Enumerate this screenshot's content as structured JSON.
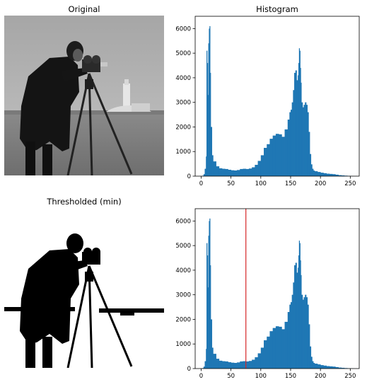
{
  "titles": {
    "original": "Original",
    "histogram": "Histogram",
    "thresholded": "Thresholded (min)"
  },
  "colors": {
    "bar": "#1f77b4",
    "threshold_line": "#d62728",
    "axis": "#000000"
  },
  "chart_data": [
    {
      "type": "bar",
      "title": "Histogram",
      "xlabel": "",
      "ylabel": "",
      "xlim": [
        -10,
        265
      ],
      "ylim": [
        0,
        6500
      ],
      "xticks": [
        0,
        50,
        100,
        150,
        200,
        250
      ],
      "yticks": [
        0,
        1000,
        2000,
        3000,
        4000,
        5000,
        6000
      ],
      "x": [
        0,
        2,
        4,
        6,
        8,
        9,
        10,
        11,
        12,
        13,
        14,
        15,
        16,
        18,
        20,
        25,
        30,
        35,
        40,
        45,
        50,
        55,
        60,
        65,
        70,
        75,
        80,
        85,
        90,
        95,
        100,
        105,
        110,
        115,
        120,
        125,
        130,
        135,
        140,
        145,
        148,
        150,
        152,
        154,
        156,
        158,
        160,
        162,
        163,
        164,
        165,
        166,
        167,
        168,
        170,
        172,
        174,
        175,
        176,
        178,
        180,
        182,
        184,
        186,
        188,
        190,
        195,
        200,
        205,
        210,
        215,
        220,
        225,
        230,
        235,
        240,
        245,
        250,
        255
      ],
      "values": [
        0,
        20,
        80,
        300,
        800,
        5100,
        4600,
        3300,
        5400,
        6000,
        6100,
        4200,
        2000,
        850,
        600,
        400,
        320,
        300,
        290,
        260,
        240,
        230,
        250,
        290,
        300,
        290,
        310,
        360,
        460,
        620,
        850,
        1150,
        1300,
        1520,
        1650,
        1720,
        1700,
        1600,
        1900,
        2300,
        2600,
        2700,
        3000,
        3500,
        4200,
        4300,
        3900,
        4100,
        4600,
        5200,
        5100,
        4400,
        3800,
        3000,
        2800,
        2900,
        3000,
        3000,
        2900,
        2600,
        1800,
        900,
        480,
        300,
        230,
        200,
        170,
        140,
        120,
        100,
        90,
        80,
        60,
        40,
        30,
        20,
        10,
        5,
        0
      ]
    },
    {
      "type": "bar",
      "title": "",
      "xlabel": "",
      "ylabel": "",
      "xlim": [
        -10,
        265
      ],
      "ylim": [
        0,
        6500
      ],
      "xticks": [
        0,
        50,
        100,
        150,
        200,
        250
      ],
      "yticks": [
        0,
        1000,
        2000,
        3000,
        4000,
        5000,
        6000
      ],
      "threshold": 75,
      "x": [
        0,
        2,
        4,
        6,
        8,
        9,
        10,
        11,
        12,
        13,
        14,
        15,
        16,
        18,
        20,
        25,
        30,
        35,
        40,
        45,
        50,
        55,
        60,
        65,
        70,
        75,
        80,
        85,
        90,
        95,
        100,
        105,
        110,
        115,
        120,
        125,
        130,
        135,
        140,
        145,
        148,
        150,
        152,
        154,
        156,
        158,
        160,
        162,
        163,
        164,
        165,
        166,
        167,
        168,
        170,
        172,
        174,
        175,
        176,
        178,
        180,
        182,
        184,
        186,
        188,
        190,
        195,
        200,
        205,
        210,
        215,
        220,
        225,
        230,
        235,
        240,
        245,
        250,
        255
      ],
      "values": [
        0,
        20,
        80,
        300,
        800,
        5100,
        4600,
        3300,
        5400,
        6000,
        6100,
        4200,
        2000,
        850,
        600,
        400,
        320,
        300,
        290,
        260,
        240,
        230,
        250,
        290,
        300,
        290,
        310,
        360,
        460,
        620,
        850,
        1150,
        1300,
        1520,
        1650,
        1720,
        1700,
        1600,
        1900,
        2300,
        2600,
        2700,
        3000,
        3500,
        4200,
        4300,
        3900,
        4100,
        4600,
        5200,
        5100,
        4400,
        3800,
        3000,
        2800,
        2900,
        3000,
        3000,
        2900,
        2600,
        1800,
        900,
        480,
        300,
        230,
        200,
        170,
        140,
        120,
        100,
        90,
        80,
        60,
        40,
        30,
        20,
        10,
        5,
        0
      ]
    }
  ]
}
